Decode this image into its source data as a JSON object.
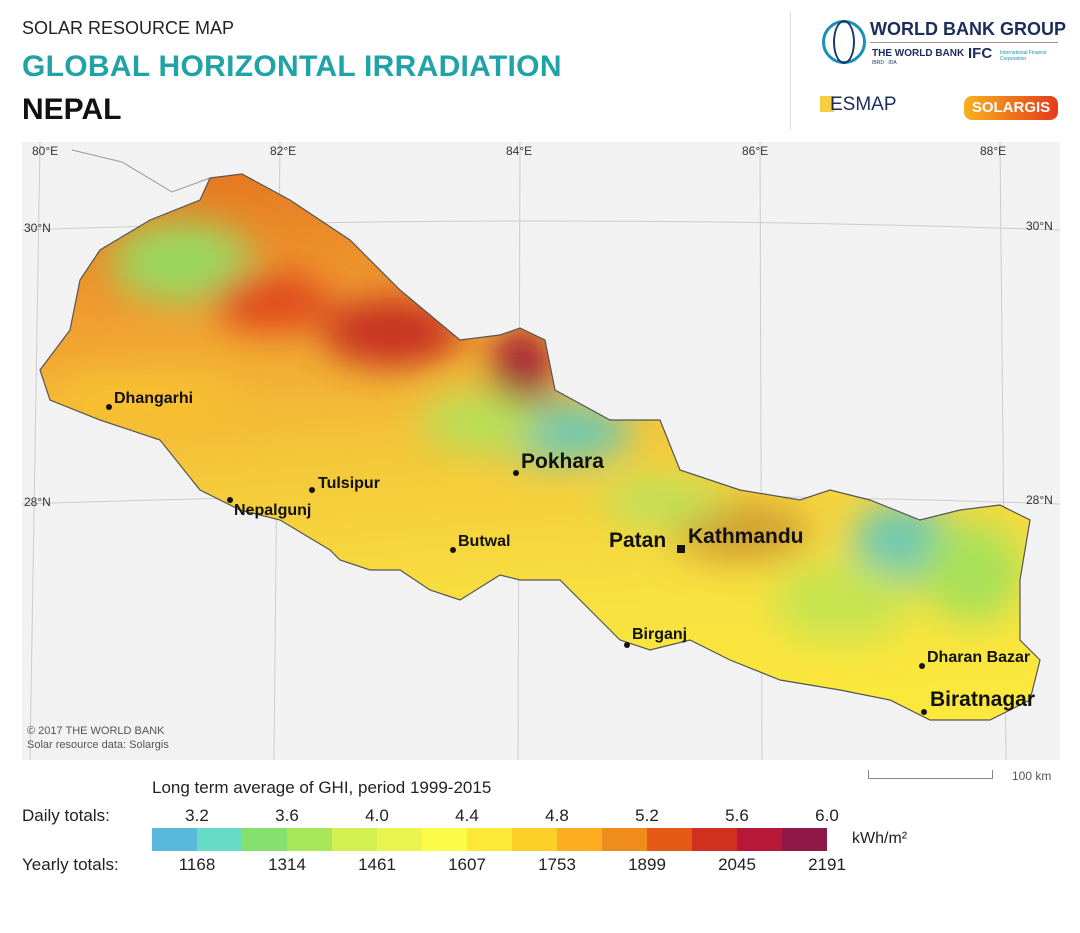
{
  "header": {
    "supertitle": "SOLAR RESOURCE MAP",
    "title": "GLOBAL HORIZONTAL IRRADIATION",
    "country": "NEPAL"
  },
  "logos": {
    "wbg": "WORLD BANK GROUP",
    "twb": "THE WORLD BANK",
    "twb_sub": "IBRD · IDA",
    "ifc": "IFC",
    "ifc_sub": "International Finance Corporation",
    "esmap": "ESMAP",
    "solargis": "SOLARGIS"
  },
  "grid": {
    "lon": [
      "80°E",
      "82°E",
      "84°E",
      "86°E",
      "88°E"
    ],
    "lat": [
      "30°N",
      "28°N"
    ]
  },
  "cities": [
    {
      "name": "Dhangarhi",
      "big": false
    },
    {
      "name": "Tulsipur",
      "big": false
    },
    {
      "name": "Nepalgunj",
      "big": false
    },
    {
      "name": "Butwal",
      "big": false
    },
    {
      "name": "Pokhara",
      "big": true
    },
    {
      "name": "Patan",
      "big": true
    },
    {
      "name": "Kathmandu",
      "big": true
    },
    {
      "name": "Birganj",
      "big": false
    },
    {
      "name": "Dharan Bazar",
      "big": false
    },
    {
      "name": "Biratnagar",
      "big": true
    }
  ],
  "credit": [
    "© 2017 THE WORLD BANK",
    "Solar resource data: Solargis"
  ],
  "scale": "100 km",
  "legend": {
    "title": "Long term average of GHI, period 1999-2015",
    "daily_label": "Daily totals:",
    "yearly_label": "Yearly totals:",
    "unit": "kWh/m²",
    "daily": [
      "3.2",
      "3.6",
      "4.0",
      "4.4",
      "4.8",
      "5.2",
      "5.6",
      "6.0"
    ],
    "yearly": [
      "1168",
      "1314",
      "1461",
      "1607",
      "1753",
      "1899",
      "2045",
      "2191"
    ],
    "colors": [
      "#5ab8dc",
      "#66dcc8",
      "#86e070",
      "#a8e858",
      "#d2f050",
      "#e8f450",
      "#fcfc48",
      "#fce838",
      "#fcd028",
      "#fcae20",
      "#f08c1c",
      "#e45a14",
      "#d03020",
      "#b81838",
      "#901848"
    ]
  }
}
